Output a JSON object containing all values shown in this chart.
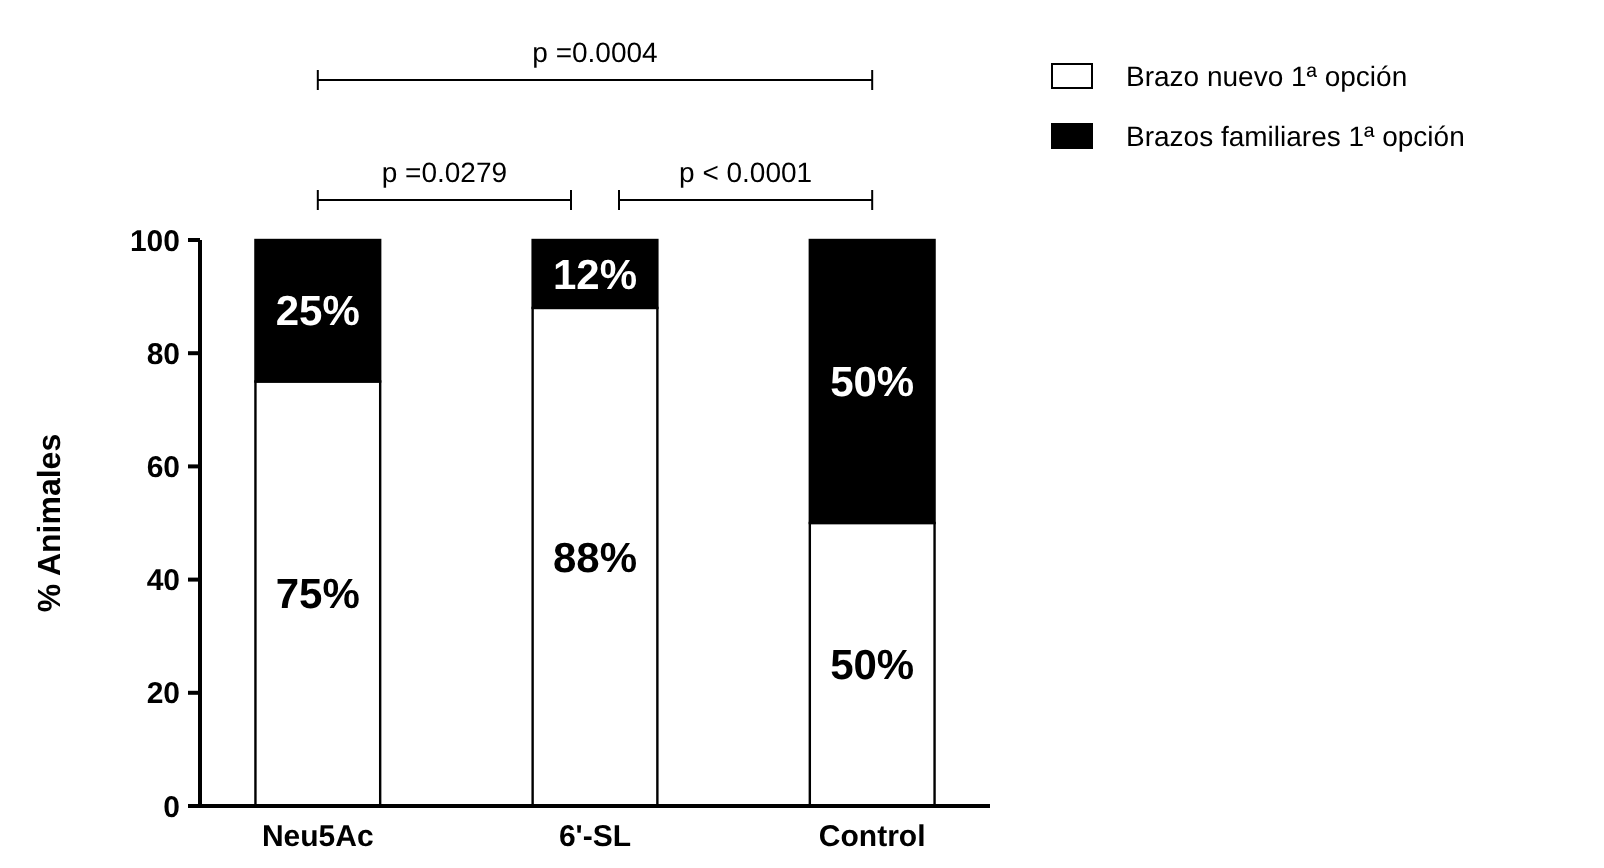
{
  "chart_data": {
    "type": "bar",
    "stacked": true,
    "ylabel": "% Animales",
    "categories": [
      "Neu5Ac",
      "6'-SL",
      "Control"
    ],
    "series": [
      {
        "name": "Brazo nuevo 1ª opción",
        "color": "#ffffff",
        "values": [
          75,
          88,
          50
        ],
        "value_labels": [
          "75%",
          "88%",
          "50%"
        ]
      },
      {
        "name": "Brazos familiares 1ª opción",
        "color": "#000000",
        "values": [
          25,
          12,
          50
        ],
        "value_labels": [
          "25%",
          "12%",
          "50%"
        ]
      }
    ],
    "ylim": [
      0,
      100
    ],
    "yticks": [
      0,
      20,
      40,
      60,
      80,
      100
    ],
    "grid": false,
    "legend": "top right",
    "annotations": [
      "p =0.0004",
      "p =0.0279",
      "p < 0.0001"
    ]
  }
}
